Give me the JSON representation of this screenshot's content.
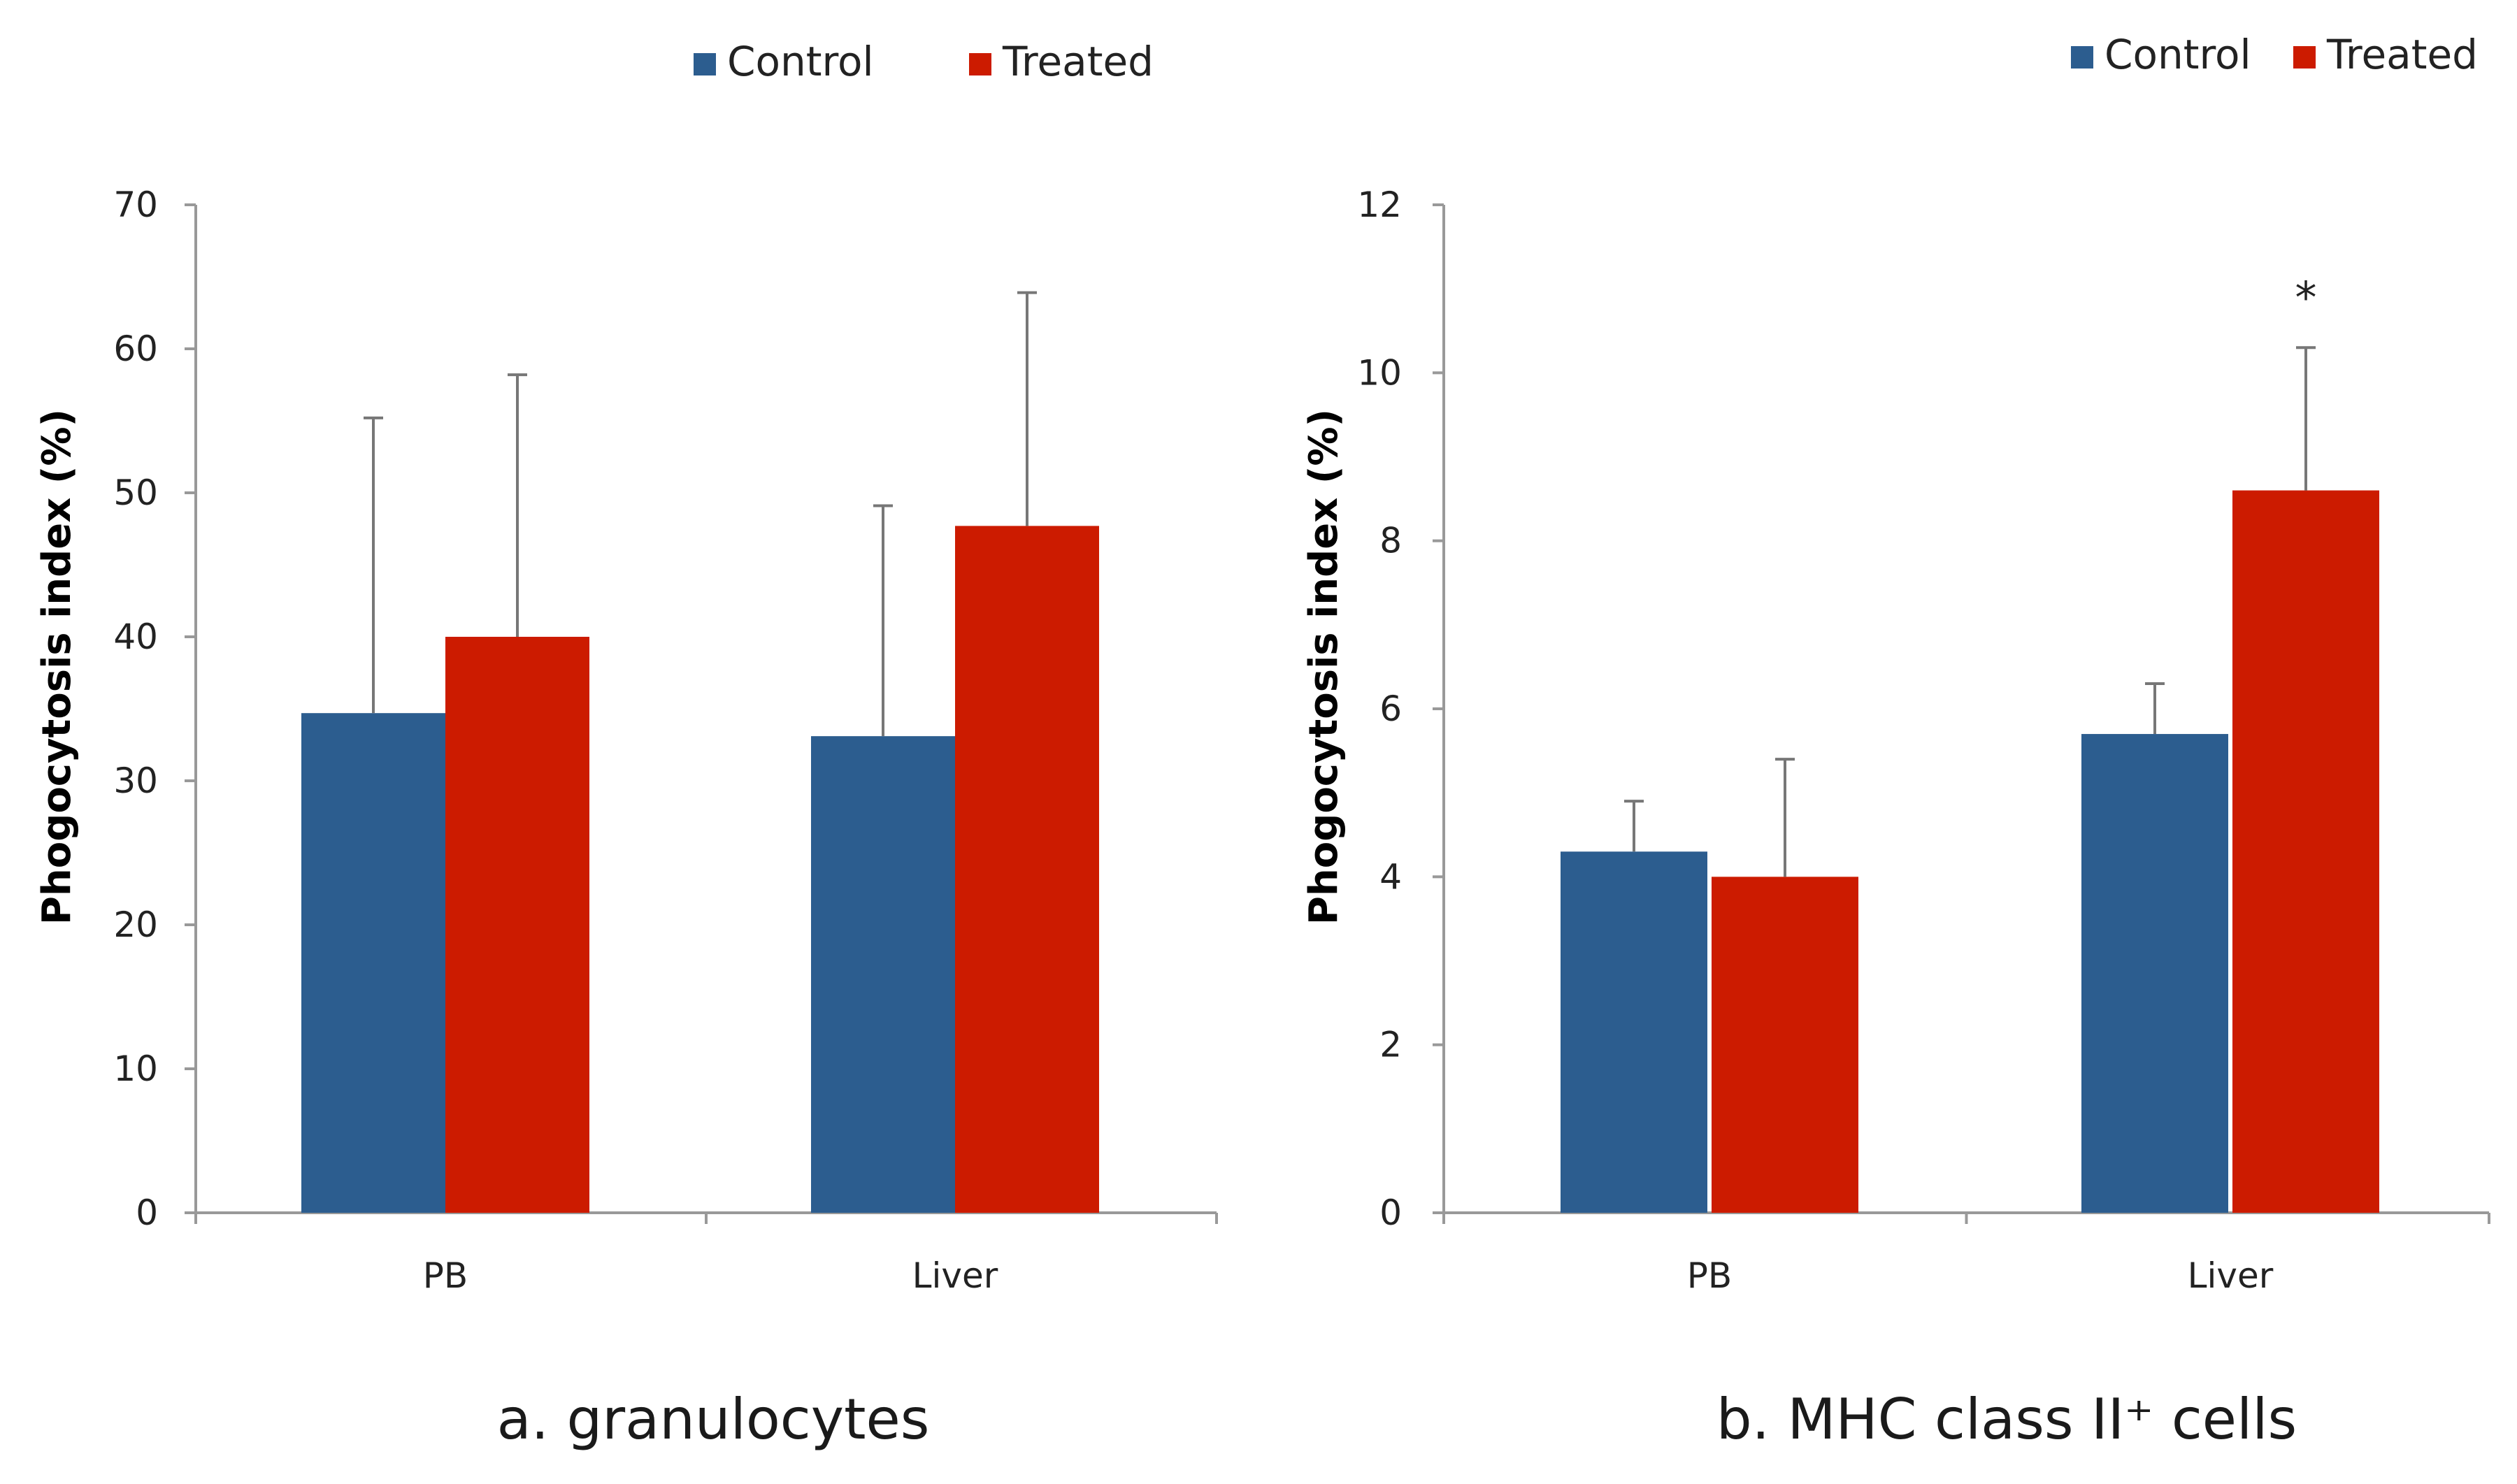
{
  "colors": {
    "control": "#2c5d8f",
    "treated": "#cc1b00",
    "axis": "#999999",
    "errorbar": "#777777"
  },
  "chart_data": [
    {
      "type": "bar",
      "title": "a. granulocytes",
      "ylabel": "Phogocytosis index (%)",
      "ylim": [
        0,
        70
      ],
      "yticks": [
        "0",
        "10",
        "20",
        "30",
        "40",
        "50",
        "60",
        "70"
      ],
      "categories": [
        "PB",
        "Liver"
      ],
      "legend_position": "top",
      "series": [
        {
          "name": "Control",
          "color": "#2c5d8f",
          "values": [
            34.7,
            33.1
          ],
          "errors": [
            20.5,
            16.0
          ]
        },
        {
          "name": "Treated",
          "color": "#cc1b00",
          "values": [
            40.0,
            47.7
          ],
          "errors": [
            18.2,
            16.2
          ]
        }
      ],
      "annotations": []
    },
    {
      "type": "bar",
      "title": "b. MHC class II⁺ cells",
      "ylabel": "Phogocytosis index (%)",
      "ylim": [
        0,
        12
      ],
      "yticks": [
        "0",
        "2",
        "4",
        "6",
        "8",
        "10",
        "12"
      ],
      "categories": [
        "PB",
        "Liver"
      ],
      "legend_position": "top-right",
      "series": [
        {
          "name": "Control",
          "color": "#2c5d8f",
          "values": [
            4.3,
            5.7
          ],
          "errors": [
            0.6,
            0.6
          ]
        },
        {
          "name": "Treated",
          "color": "#cc1b00",
          "values": [
            4.0,
            8.6
          ],
          "errors": [
            1.4,
            1.7
          ]
        }
      ],
      "annotations": [
        {
          "text": "*",
          "category": "Liver",
          "series": "Treated"
        }
      ]
    }
  ]
}
